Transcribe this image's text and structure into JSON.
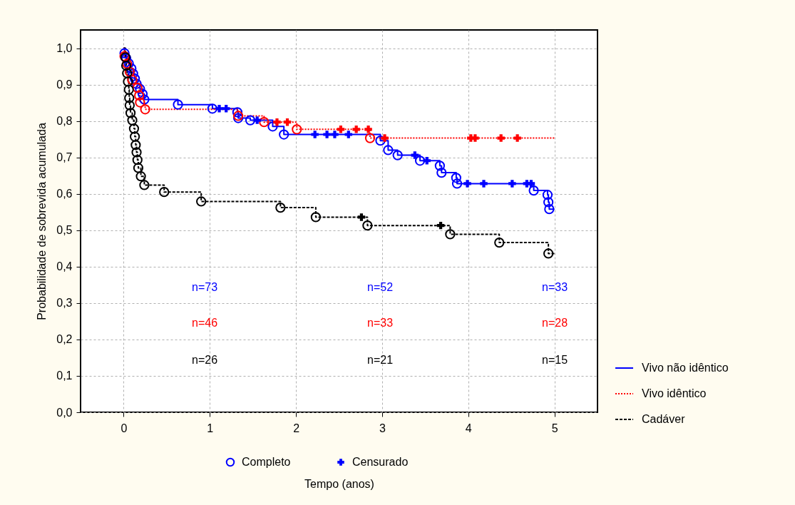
{
  "chart_data": {
    "type": "step",
    "xlabel": "Tempo (anos)",
    "ylabel": "Probabilidade de sobrevida acumulada",
    "xlim": [
      -0.5,
      5.5
    ],
    "xticks": [
      0,
      1,
      2,
      3,
      4,
      5
    ],
    "ylim": [
      0,
      1.05
    ],
    "yticks": [
      {
        "value": 0,
        "label": "0,0"
      },
      {
        "value": 0.1,
        "label": "0,1"
      },
      {
        "value": 0.2,
        "label": "0,2"
      },
      {
        "value": 0.3,
        "label": "0,3"
      },
      {
        "value": 0.4,
        "label": "0,4"
      },
      {
        "value": 0.5,
        "label": "0,5"
      },
      {
        "value": 0.6,
        "label": "0,6"
      },
      {
        "value": 0.7,
        "label": "0,7"
      },
      {
        "value": 0.8,
        "label": "0,8"
      },
      {
        "value": 0.9,
        "label": "0,9"
      },
      {
        "value": 1.0,
        "label": "1,0"
      }
    ],
    "grid": true,
    "legend": "right",
    "series": [
      {
        "name": "Vivo não idêntico",
        "color": "#0000ff",
        "line_style": "solid",
        "x": [
          0,
          0.01,
          0.03,
          0.06,
          0.09,
          0.11,
          0.13,
          0.15,
          0.19,
          0.22,
          0.24,
          0.63,
          1.03,
          1.32,
          1.33,
          1.47,
          1.73,
          1.86,
          2.98,
          3.07,
          3.18,
          3.44,
          3.67,
          3.69,
          3.86,
          3.87,
          4.76,
          4.92,
          4.93,
          4.94,
          5.0
        ],
        "values": [
          1.0,
          0.986,
          0.972,
          0.958,
          0.944,
          0.93,
          0.916,
          0.902,
          0.888,
          0.874,
          0.859,
          0.845,
          0.834,
          0.824,
          0.808,
          0.802,
          0.785,
          0.763,
          0.746,
          0.72,
          0.706,
          0.691,
          0.677,
          0.658,
          0.644,
          0.628,
          0.609,
          0.597,
          0.577,
          0.558,
          0.558
        ]
      },
      {
        "name": "Vivo idêntico",
        "color": "#ff0000",
        "line_style": "dotted",
        "x": [
          0,
          0.01,
          0.04,
          0.07,
          0.1,
          0.16,
          0.18,
          0.19,
          0.25,
          1.33,
          1.63,
          2.01,
          2.86,
          5.0
        ],
        "values": [
          1.0,
          0.978,
          0.957,
          0.935,
          0.913,
          0.891,
          0.87,
          0.851,
          0.832,
          0.814,
          0.797,
          0.777,
          0.753,
          0.753
        ]
      },
      {
        "name": "Cadáver",
        "color": "#000000",
        "line_style": "dashed",
        "x": [
          0,
          0.02,
          0.03,
          0.04,
          0.05,
          0.06,
          0.065,
          0.07,
          0.08,
          0.1,
          0.12,
          0.13,
          0.14,
          0.15,
          0.16,
          0.17,
          0.2,
          0.24,
          0.47,
          0.9,
          1.82,
          2.23,
          2.83,
          3.79,
          4.36,
          4.93,
          5.0
        ],
        "values": [
          1.0,
          0.975,
          0.952,
          0.931,
          0.908,
          0.886,
          0.863,
          0.843,
          0.822,
          0.802,
          0.779,
          0.757,
          0.734,
          0.714,
          0.693,
          0.671,
          0.648,
          0.624,
          0.605,
          0.579,
          0.562,
          0.536,
          0.513,
          0.489,
          0.466,
          0.436,
          0.436
        ]
      },
      {
        "name": "Completo",
        "type": "scatter",
        "marker": "circle",
        "color": "#0000ff",
        "x": [
          0.01,
          0.03,
          0.06,
          0.09,
          0.11,
          0.13,
          0.15,
          0.19,
          0.22,
          0.24,
          0.63,
          1.03,
          1.32,
          1.33,
          1.47,
          1.73,
          1.86,
          2.98,
          3.07,
          3.18,
          3.44,
          3.67,
          3.69,
          3.86,
          3.87,
          4.76,
          4.92,
          4.93,
          4.94
        ],
        "values": [
          0.986,
          0.972,
          0.958,
          0.944,
          0.93,
          0.916,
          0.902,
          0.888,
          0.874,
          0.859,
          0.845,
          0.834,
          0.824,
          0.808,
          0.802,
          0.785,
          0.763,
          0.746,
          0.72,
          0.706,
          0.691,
          0.677,
          0.658,
          0.644,
          0.628,
          0.609,
          0.597,
          0.577,
          0.558
        ]
      },
      {
        "type": "scatter",
        "marker": "circle",
        "color": "#ff0000",
        "x": [
          0.01,
          0.04,
          0.07,
          0.1,
          0.16,
          0.18,
          0.19,
          0.25,
          1.33,
          1.63,
          2.01,
          2.86
        ],
        "values": [
          0.978,
          0.957,
          0.935,
          0.913,
          0.891,
          0.87,
          0.851,
          0.832,
          0.814,
          0.797,
          0.777,
          0.753
        ]
      },
      {
        "type": "scatter",
        "marker": "circle",
        "color": "#000000",
        "x": [
          0.02,
          0.03,
          0.04,
          0.05,
          0.06,
          0.065,
          0.07,
          0.08,
          0.1,
          0.12,
          0.13,
          0.14,
          0.15,
          0.16,
          0.17,
          0.2,
          0.24,
          0.47,
          0.9,
          1.82,
          2.23,
          2.83,
          3.79,
          4.36,
          4.93
        ],
        "values": [
          0.975,
          0.952,
          0.931,
          0.908,
          0.886,
          0.863,
          0.843,
          0.822,
          0.802,
          0.779,
          0.757,
          0.734,
          0.714,
          0.693,
          0.671,
          0.648,
          0.624,
          0.605,
          0.579,
          0.562,
          0.536,
          0.513,
          0.489,
          0.466,
          0.436
        ]
      },
      {
        "name": "Censurado",
        "type": "scatter",
        "marker": "cross",
        "color": "#0000ff",
        "x": [
          1.11,
          1.19,
          1.55,
          2.22,
          2.36,
          2.45,
          2.61,
          3.38,
          3.52,
          3.99,
          4.18,
          4.51,
          4.68,
          4.73
        ],
        "values": [
          0.834,
          0.834,
          0.802,
          0.763,
          0.763,
          0.763,
          0.763,
          0.706,
          0.691,
          0.628,
          0.628,
          0.628,
          0.628,
          0.628
        ]
      },
      {
        "type": "scatter",
        "marker": "cross",
        "color": "#ff0000",
        "x": [
          1.78,
          1.9,
          2.52,
          2.7,
          2.84,
          3.03,
          4.03,
          4.08,
          4.38,
          4.57
        ],
        "values": [
          0.797,
          0.797,
          0.777,
          0.777,
          0.777,
          0.753,
          0.753,
          0.753,
          0.753,
          0.753
        ]
      },
      {
        "type": "scatter",
        "marker": "cross",
        "color": "#000000",
        "x": [
          2.76,
          3.68
        ],
        "values": [
          0.536,
          0.513
        ]
      }
    ],
    "annotations": [
      "n=73",
      "n=46",
      "n=26",
      "n=52",
      "n=33",
      "n=21",
      "n=33",
      "n=28",
      "n=15"
    ]
  }
}
